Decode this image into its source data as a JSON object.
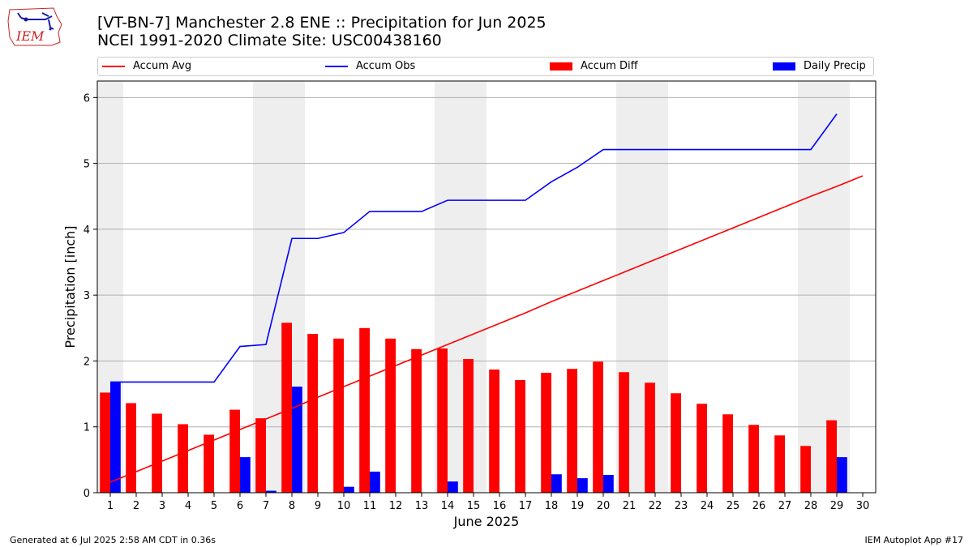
{
  "header": {
    "logo_text": "IEM",
    "title": "[VT-BN-7] Manchester 2.8 ENE :: Precipitation for Jun 2025",
    "subtitle": "NCEI 1991-2020 Climate Site: USC00438160"
  },
  "legend": {
    "accum_avg": "Accum Avg",
    "accum_obs": "Accum Obs",
    "accum_diff": "Accum Diff",
    "daily_precip": "Daily Precip"
  },
  "colors": {
    "accum_avg": "#ff0000",
    "accum_obs": "#0000ff",
    "accum_diff": "#ff0000",
    "daily_precip": "#0000ff",
    "weekend_shade": "#eeeeee",
    "grid": "#b0b0b0"
  },
  "footer": {
    "generated": "Generated at 6 Jul 2025 2:58 AM CDT in 0.36s",
    "app": "IEM Autoplot App #17"
  },
  "chart_data": {
    "type": "bar",
    "title": "[VT-BN-7] Manchester 2.8 ENE :: Precipitation for Jun 2025",
    "xlabel": "June 2025",
    "ylabel": "Precipitation [inch]",
    "ylim": [
      0,
      6.25
    ],
    "yticks": [
      0,
      1,
      2,
      3,
      4,
      5,
      6
    ],
    "x": [
      1,
      2,
      3,
      4,
      5,
      6,
      7,
      8,
      9,
      10,
      11,
      12,
      13,
      14,
      15,
      16,
      17,
      18,
      19,
      20,
      21,
      22,
      23,
      24,
      25,
      26,
      27,
      28,
      29,
      30
    ],
    "grid": "horizontal",
    "legend_position": "top",
    "weekend_days": [
      1,
      7,
      8,
      14,
      15,
      21,
      22,
      28,
      29
    ],
    "series": [
      {
        "name": "Accum Avg",
        "kind": "line",
        "values": [
          0.16,
          0.32,
          0.48,
          0.64,
          0.8,
          0.96,
          1.12,
          1.28,
          1.45,
          1.61,
          1.77,
          1.93,
          2.09,
          2.25,
          2.41,
          2.57,
          2.73,
          2.9,
          3.06,
          3.22,
          3.38,
          3.54,
          3.7,
          3.86,
          4.02,
          4.18,
          4.34,
          4.5,
          4.65,
          4.81
        ]
      },
      {
        "name": "Accum Obs",
        "kind": "line",
        "values": [
          1.68,
          1.68,
          1.68,
          1.68,
          1.68,
          2.22,
          2.25,
          3.86,
          3.86,
          3.95,
          4.27,
          4.27,
          4.27,
          4.44,
          4.44,
          4.44,
          4.44,
          4.72,
          4.94,
          5.21,
          5.21,
          5.21,
          5.21,
          5.21,
          5.21,
          5.21,
          5.21,
          5.21,
          5.75,
          null
        ]
      },
      {
        "name": "Accum Diff",
        "kind": "bar",
        "values": [
          1.52,
          1.36,
          1.2,
          1.04,
          0.88,
          1.26,
          1.13,
          2.58,
          2.41,
          2.34,
          2.5,
          2.34,
          2.18,
          2.19,
          2.03,
          1.87,
          1.71,
          1.82,
          1.88,
          1.99,
          1.83,
          1.67,
          1.51,
          1.35,
          1.19,
          1.03,
          0.87,
          0.71,
          1.1,
          null
        ]
      },
      {
        "name": "Daily Precip",
        "kind": "bar",
        "values": [
          1.68,
          0,
          0,
          0,
          0,
          0.54,
          0.03,
          1.61,
          0,
          0.09,
          0.32,
          0,
          0,
          0.17,
          0,
          0,
          0,
          0.28,
          0.22,
          0.27,
          0,
          0,
          0,
          0,
          0,
          0,
          0,
          0,
          0.54,
          null
        ]
      }
    ]
  }
}
